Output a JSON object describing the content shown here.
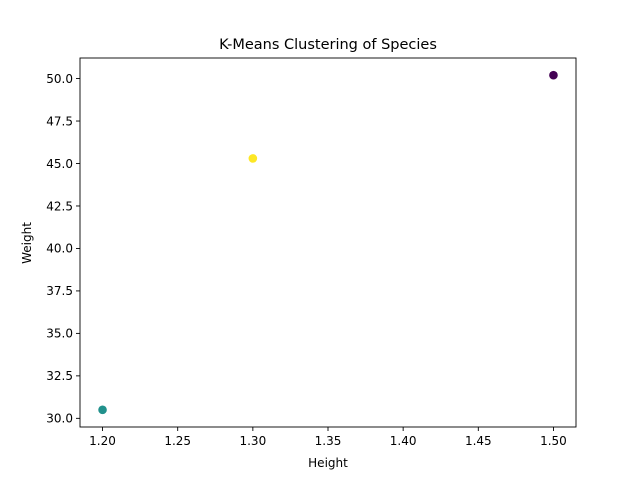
{
  "chart_data": {
    "type": "scatter",
    "title": "K-Means Clustering of Species",
    "xlabel": "Height",
    "ylabel": "Weight",
    "xlim": [
      1.185,
      1.515
    ],
    "ylim": [
      29.49,
      51.21
    ],
    "grid": false,
    "xticks": [
      "1.20",
      "1.25",
      "1.30",
      "1.35",
      "1.40",
      "1.45",
      "1.50"
    ],
    "yticks": [
      "30.0",
      "32.5",
      "35.0",
      "37.5",
      "40.0",
      "42.5",
      "45.0",
      "47.5",
      "50.0"
    ],
    "points": [
      {
        "x": 1.5,
        "y": 50.2,
        "cluster": 0,
        "color": "#440154"
      },
      {
        "x": 1.3,
        "y": 45.3,
        "cluster": 2,
        "color": "#fde725"
      },
      {
        "x": 1.2,
        "y": 30.5,
        "cluster": 1,
        "color": "#21918c"
      }
    ]
  }
}
